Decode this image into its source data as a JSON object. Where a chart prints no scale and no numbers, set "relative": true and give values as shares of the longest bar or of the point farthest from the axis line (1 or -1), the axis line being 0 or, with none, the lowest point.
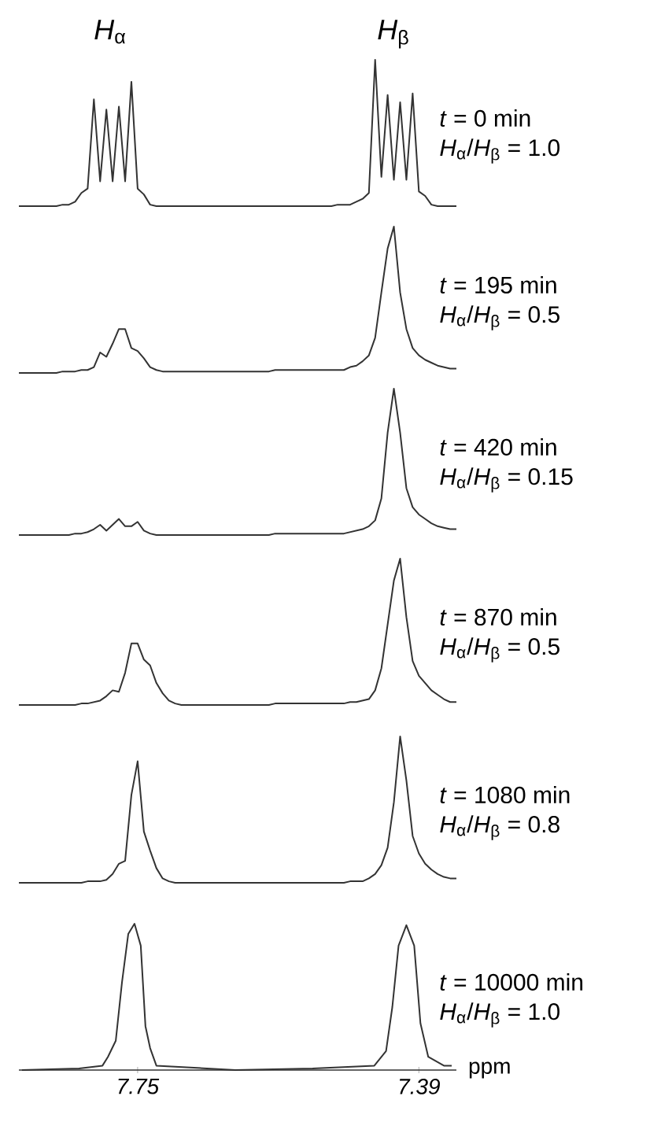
{
  "chart_data": [
    {
      "type": "line",
      "relative": true,
      "color": "#333333",
      "tick_labels": false,
      "annotations": [
        "*H*$_{α}$",
        "*H*$_{β}$",
        "*t* = 0 min",
        "*H*$_{α}$/*H*$_{β}$ = 1.0"
      ],
      "categories": [
        null,
        null,
        null,
        null,
        null,
        null,
        null,
        null,
        null,
        null,
        null,
        null,
        null,
        null,
        null,
        null,
        null,
        null,
        null,
        null,
        null,
        null,
        null,
        null,
        null,
        null,
        null,
        null,
        null,
        null,
        null,
        null,
        null,
        null,
        null,
        null,
        null,
        null,
        null,
        null,
        null,
        null,
        null,
        null,
        null,
        null,
        null,
        null,
        null,
        null,
        null,
        null,
        null,
        null,
        null,
        null,
        null,
        null,
        null,
        null,
        null,
        null,
        null,
        null,
        null,
        null,
        null,
        null,
        null,
        null,
        null
      ],
      "values": [
        0,
        0,
        0,
        0,
        0,
        0,
        0,
        0.01,
        0.01,
        0.03,
        0.09,
        0.12,
        0.73,
        0.17,
        0.66,
        0.17,
        0.68,
        0.17,
        0.85,
        0.12,
        0.08,
        0.01,
        0,
        0,
        0,
        0,
        0,
        0,
        0,
        0,
        0,
        0,
        0,
        0,
        0,
        0,
        0,
        0,
        0,
        0,
        0,
        0,
        0,
        0,
        0,
        0,
        0,
        0,
        0,
        0,
        0,
        0.01,
        0.01,
        0.01,
        0.03,
        0.05,
        0.09,
        1.0,
        0.2,
        0.76,
        0.18,
        0.71,
        0.18,
        0.77,
        0.1,
        0.07,
        0.01,
        0,
        0,
        0,
        0
      ]
    },
    {
      "type": "line",
      "relative": true,
      "color": "#333333",
      "tick_labels": false,
      "annotations": [
        "*t* = 195 min",
        "*H*$_{α}$/*H*$_{β}$ = 0.5"
      ],
      "categories": [
        null,
        null,
        null,
        null,
        null,
        null,
        null,
        null,
        null,
        null,
        null,
        null,
        null,
        null,
        null,
        null,
        null,
        null,
        null,
        null,
        null,
        null,
        null,
        null,
        null,
        null,
        null,
        null,
        null,
        null,
        null,
        null,
        null,
        null,
        null,
        null,
        null,
        null,
        null,
        null,
        null,
        null,
        null,
        null,
        null,
        null,
        null,
        null,
        null,
        null,
        null,
        null,
        null,
        null,
        null,
        null,
        null,
        null,
        null,
        null,
        null,
        null,
        null,
        null,
        null,
        null,
        null,
        null,
        null,
        null,
        null
      ],
      "values": [
        0,
        0,
        0,
        0,
        0,
        0,
        0,
        0.01,
        0.01,
        0.01,
        0.02,
        0.02,
        0.04,
        0.14,
        0.11,
        0.2,
        0.3,
        0.3,
        0.17,
        0.15,
        0.1,
        0.04,
        0.02,
        0.01,
        0.01,
        0.01,
        0.01,
        0.01,
        0.01,
        0.01,
        0.01,
        0.01,
        0.01,
        0.01,
        0.01,
        0.01,
        0.01,
        0.01,
        0.01,
        0.01,
        0.01,
        0.02,
        0.02,
        0.02,
        0.02,
        0.02,
        0.02,
        0.02,
        0.02,
        0.02,
        0.02,
        0.02,
        0.02,
        0.04,
        0.05,
        0.08,
        0.12,
        0.24,
        0.55,
        0.85,
        1.0,
        0.55,
        0.3,
        0.17,
        0.12,
        0.09,
        0.07,
        0.05,
        0.04,
        0.03,
        0.03
      ]
    },
    {
      "type": "line",
      "relative": true,
      "color": "#333333",
      "tick_labels": false,
      "annotations": [
        "*t* = 420 min",
        "*H*$_{α}$/*H*$_{β}$ = 0.15"
      ],
      "categories": [
        null,
        null,
        null,
        null,
        null,
        null,
        null,
        null,
        null,
        null,
        null,
        null,
        null,
        null,
        null,
        null,
        null,
        null,
        null,
        null,
        null,
        null,
        null,
        null,
        null,
        null,
        null,
        null,
        null,
        null,
        null,
        null,
        null,
        null,
        null,
        null,
        null,
        null,
        null,
        null,
        null,
        null,
        null,
        null,
        null,
        null,
        null,
        null,
        null,
        null,
        null,
        null,
        null,
        null,
        null,
        null,
        null,
        null,
        null,
        null,
        null,
        null,
        null,
        null,
        null,
        null,
        null,
        null,
        null,
        null,
        null
      ],
      "values": [
        0,
        0,
        0,
        0,
        0,
        0,
        0,
        0,
        0,
        0.01,
        0.01,
        0.02,
        0.04,
        0.07,
        0.03,
        0.07,
        0.11,
        0.06,
        0.06,
        0.09,
        0.03,
        0.01,
        0,
        0,
        0,
        0,
        0,
        0,
        0,
        0,
        0,
        0,
        0,
        0,
        0,
        0,
        0,
        0,
        0,
        0,
        0,
        0.01,
        0.01,
        0.01,
        0.01,
        0.01,
        0.01,
        0.01,
        0.01,
        0.01,
        0.01,
        0.01,
        0.01,
        0.02,
        0.03,
        0.04,
        0.06,
        0.1,
        0.25,
        0.7,
        1.0,
        0.7,
        0.32,
        0.19,
        0.14,
        0.11,
        0.08,
        0.06,
        0.05,
        0.04,
        0.04
      ]
    },
    {
      "type": "line",
      "relative": true,
      "color": "#333333",
      "tick_labels": false,
      "annotations": [
        "*t* = 870 min",
        "*H*$_{α}$/*H*$_{β}$ = 0.5"
      ],
      "categories": [
        null,
        null,
        null,
        null,
        null,
        null,
        null,
        null,
        null,
        null,
        null,
        null,
        null,
        null,
        null,
        null,
        null,
        null,
        null,
        null,
        null,
        null,
        null,
        null,
        null,
        null,
        null,
        null,
        null,
        null,
        null,
        null,
        null,
        null,
        null,
        null,
        null,
        null,
        null,
        null,
        null,
        null,
        null,
        null,
        null,
        null,
        null,
        null,
        null,
        null,
        null,
        null,
        null,
        null,
        null,
        null,
        null,
        null,
        null,
        null,
        null,
        null,
        null,
        null,
        null,
        null,
        null,
        null,
        null,
        null,
        null
      ],
      "values": [
        0,
        0,
        0,
        0,
        0,
        0,
        0,
        0,
        0,
        0,
        0.01,
        0.01,
        0.02,
        0.03,
        0.06,
        0.1,
        0.09,
        0.22,
        0.42,
        0.42,
        0.31,
        0.27,
        0.15,
        0.08,
        0.03,
        0.01,
        0,
        0,
        0,
        0,
        0,
        0,
        0,
        0,
        0,
        0,
        0,
        0,
        0,
        0,
        0,
        0.01,
        0.01,
        0.01,
        0.01,
        0.01,
        0.01,
        0.01,
        0.01,
        0.01,
        0.01,
        0.01,
        0.01,
        0.02,
        0.02,
        0.03,
        0.04,
        0.1,
        0.25,
        0.55,
        0.85,
        1.0,
        0.6,
        0.3,
        0.2,
        0.15,
        0.1,
        0.07,
        0.04,
        0.02,
        0.02
      ]
    },
    {
      "type": "line",
      "relative": true,
      "color": "#333333",
      "tick_labels": false,
      "annotations": [
        "*t* = 1080 min",
        "*H*$_{α}$/*H*$_{β}$ = 0.8"
      ],
      "categories": [
        null,
        null,
        null,
        null,
        null,
        null,
        null,
        null,
        null,
        null,
        null,
        null,
        null,
        null,
        null,
        null,
        null,
        null,
        null,
        null,
        null,
        null,
        null,
        null,
        null,
        null,
        null,
        null,
        null,
        null,
        null,
        null,
        null,
        null,
        null,
        null,
        null,
        null,
        null,
        null,
        null,
        null,
        null,
        null,
        null,
        null,
        null,
        null,
        null,
        null,
        null,
        null,
        null,
        null,
        null,
        null,
        null,
        null,
        null,
        null,
        null,
        null,
        null,
        null,
        null,
        null,
        null,
        null,
        null,
        null,
        null
      ],
      "values": [
        0,
        0,
        0,
        0,
        0,
        0,
        0,
        0,
        0,
        0,
        0,
        0.01,
        0.01,
        0.01,
        0.02,
        0.06,
        0.13,
        0.15,
        0.6,
        0.83,
        0.35,
        0.22,
        0.1,
        0.03,
        0.01,
        0,
        0,
        0,
        0,
        0,
        0,
        0,
        0,
        0,
        0,
        0,
        0,
        0,
        0,
        0,
        0,
        0,
        0,
        0,
        0,
        0,
        0,
        0,
        0,
        0,
        0,
        0,
        0,
        0.01,
        0.01,
        0.01,
        0.03,
        0.06,
        0.12,
        0.24,
        0.55,
        1.0,
        0.7,
        0.32,
        0.2,
        0.13,
        0.09,
        0.06,
        0.04,
        0.03,
        0.03
      ]
    },
    {
      "type": "line",
      "relative": true,
      "color": "#333333",
      "xlim": [
        7.902,
        7.342
      ],
      "xticks": [
        {
          "value": 7.75,
          "label": "7.75"
        },
        {
          "value": 7.39,
          "label": "7.39"
        }
      ],
      "xlabel": "ppm",
      "tick_labels": "x",
      "annotations": [
        "*t* = 10000 min",
        "*H*$_{α}$/*H*$_{β}$ = 1.0"
      ],
      "x": [
        7.898,
        7.825,
        7.795,
        7.788,
        7.778,
        7.77,
        7.762,
        7.754,
        7.746,
        7.74,
        7.734,
        7.726,
        7.625,
        7.526,
        7.447,
        7.432,
        7.424,
        7.416,
        7.406,
        7.396,
        7.388,
        7.378,
        7.358,
        7.348
      ],
      "values": [
        0,
        0.01,
        0.03,
        0.09,
        0.2,
        0.6,
        0.93,
        1.0,
        0.85,
        0.3,
        0.15,
        0.03,
        0,
        0.01,
        0.03,
        0.13,
        0.43,
        0.85,
        0.99,
        0.85,
        0.32,
        0.09,
        0.03,
        0.03
      ]
    }
  ]
}
